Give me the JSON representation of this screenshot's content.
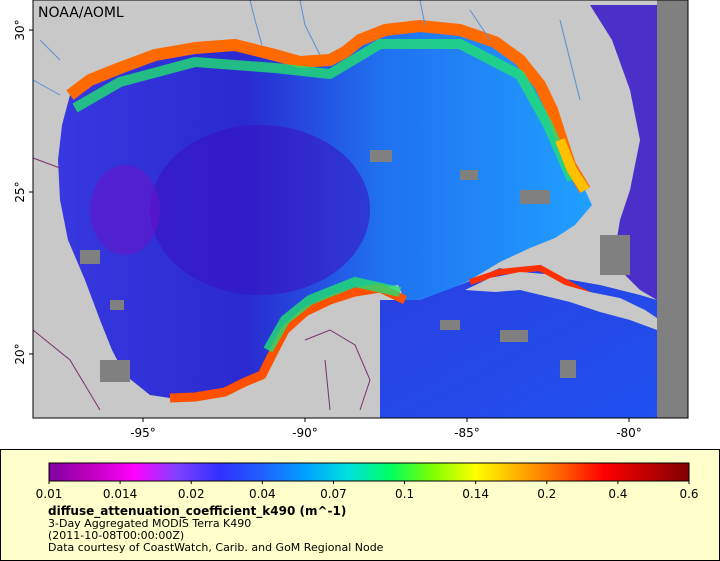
{
  "map": {
    "credit": "NOAA/AOML",
    "lat_labels": [
      "30°",
      "25°",
      "20°"
    ],
    "lat_values": [
      30,
      25,
      20
    ],
    "lon_labels": [
      "-95°",
      "-90°",
      "-85°",
      "-80°"
    ],
    "lon_values": [
      -95,
      -90,
      -85,
      -80
    ],
    "colors": {
      "land": "#c8c8c8",
      "no_data": "#808080",
      "rivers": "#5b8fd6",
      "borders": "#7a2f6f",
      "frame": "#000000"
    }
  },
  "legend": {
    "tick_labels": [
      "0.01",
      "0.014",
      "0.02",
      "0.04",
      "0.07",
      "0.1",
      "0.14",
      "0.2",
      "0.4",
      "0.6"
    ],
    "tick_values": [
      0.01,
      0.014,
      0.02,
      0.04,
      0.07,
      0.1,
      0.14,
      0.2,
      0.4,
      0.6
    ],
    "gradient": [
      "#8000a0",
      "#c000c0",
      "#ff00ff",
      "#8040ff",
      "#3030ff",
      "#2060ff",
      "#00a0ff",
      "#00e0e0",
      "#00ff60",
      "#80ff00",
      "#ffff00",
      "#ffb000",
      "#ff6000",
      "#ff0000",
      "#c00000",
      "#800000"
    ],
    "variable": "diffuse_attenuation_coefficient_k490 (m^-1)",
    "product": "3-Day Aggregated MODIS Terra K490",
    "date": "(2011-10-08T00:00:00Z)",
    "credit": "Data courtesy of CoastWatch, Carib. and GoM Regional Node"
  }
}
